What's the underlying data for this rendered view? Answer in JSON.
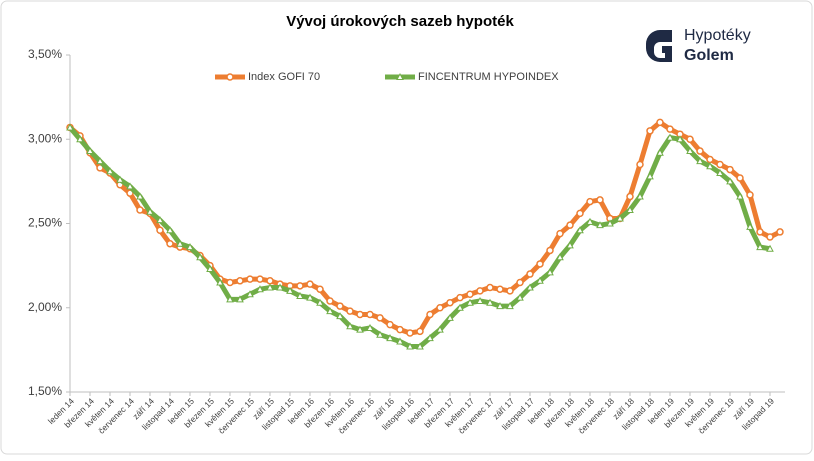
{
  "chart_data": {
    "type": "line",
    "title": "Vývoj úrokových sazeb hypoték",
    "logo": {
      "line1": "Hypotéky",
      "line2": "Golem"
    },
    "categories": [
      "leden 14",
      null,
      "březen 14",
      null,
      "květen 14",
      null,
      "červenec 14",
      null,
      "září 14",
      null,
      "listopad 14",
      null,
      "leden 15",
      null,
      "březen 15",
      null,
      "květen 15",
      null,
      "červenec 15",
      null,
      "září 15",
      null,
      "listopad 15",
      null,
      "leden 16",
      null,
      "březen 16",
      null,
      "květen 16",
      null,
      "červenec 16",
      null,
      "září 16",
      null,
      "listopad 16",
      null,
      "leden 17",
      null,
      "březen 17",
      null,
      "květen 17",
      null,
      "červenec 17",
      null,
      "září 17",
      null,
      "listopad 17",
      null,
      "leden 18",
      null,
      "březen 18",
      null,
      "květen 18",
      null,
      "červenec 18",
      null,
      "září 18",
      null,
      "listopad 18",
      null,
      "leden 19",
      null,
      "březen 19",
      null,
      "květen 19",
      null,
      "červenec 19",
      null,
      "září 19",
      null,
      "listopad 19",
      null
    ],
    "series": [
      {
        "name": "Index GOFI 70",
        "color": "#ed7d31",
        "marker": "circle",
        "values": [
          3.07,
          3.02,
          2.92,
          2.83,
          2.8,
          2.73,
          2.68,
          2.58,
          2.56,
          2.46,
          2.38,
          2.36,
          2.35,
          2.31,
          2.25,
          2.17,
          2.15,
          2.16,
          2.17,
          2.17,
          2.16,
          2.14,
          2.13,
          2.13,
          2.14,
          2.11,
          2.04,
          2.01,
          1.98,
          1.96,
          1.96,
          1.94,
          1.9,
          1.87,
          1.85,
          1.86,
          1.96,
          2.0,
          2.03,
          2.06,
          2.08,
          2.1,
          2.12,
          2.11,
          2.1,
          2.15,
          2.2,
          2.26,
          2.34,
          2.44,
          2.49,
          2.56,
          2.63,
          2.64,
          2.53,
          2.53,
          2.66,
          2.85,
          3.05,
          3.1,
          3.06,
          3.03,
          3.0,
          2.93,
          2.88,
          2.85,
          2.82,
          2.77,
          2.67,
          2.45,
          2.42,
          2.45
        ]
      },
      {
        "name": "FINCENTRUM HYPOINDEX",
        "color": "#70ad47",
        "marker": "triangle",
        "values": [
          3.07,
          3.0,
          2.93,
          2.87,
          2.81,
          2.76,
          2.72,
          2.66,
          2.57,
          2.52,
          2.46,
          2.38,
          2.36,
          2.3,
          2.23,
          2.15,
          2.05,
          2.05,
          2.08,
          2.11,
          2.12,
          2.12,
          2.1,
          2.07,
          2.06,
          2.03,
          1.98,
          1.95,
          1.89,
          1.87,
          1.88,
          1.84,
          1.82,
          1.8,
          1.77,
          1.77,
          1.82,
          1.87,
          1.94,
          2.0,
          2.03,
          2.04,
          2.03,
          2.01,
          2.01,
          2.06,
          2.12,
          2.16,
          2.21,
          2.3,
          2.37,
          2.46,
          2.51,
          2.49,
          2.5,
          2.53,
          2.58,
          2.66,
          2.78,
          2.92,
          3.01,
          3.0,
          2.93,
          2.87,
          2.84,
          2.8,
          2.75,
          2.66,
          2.48,
          2.36,
          2.35,
          null
        ]
      }
    ],
    "ylim": [
      1.5,
      3.5
    ],
    "yticks": [
      {
        "value": 1.5,
        "label": "1,50%"
      },
      {
        "value": 2,
        "label": "2,00%"
      },
      {
        "value": 2.5,
        "label": "2,50%"
      },
      {
        "value": 3,
        "label": "3,00%"
      },
      {
        "value": 3.5,
        "label": "3,50%"
      }
    ],
    "grid": false,
    "legend": "top"
  }
}
